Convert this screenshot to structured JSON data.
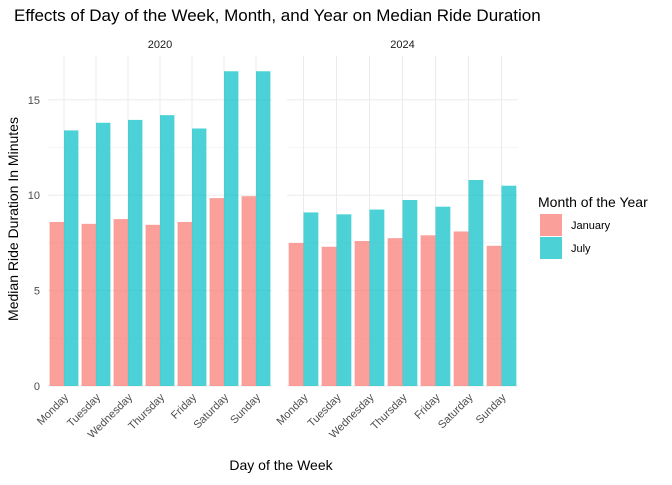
{
  "chart_data": {
    "type": "bar",
    "title": "Effects of Day of the Week, Month, and Year on Median Ride Duration",
    "xlabel": "Day of the Week",
    "ylabel": "Median Ride Duration In Minutes",
    "ylim": [
      0,
      17.3
    ],
    "yticks": [
      0,
      5,
      10,
      15
    ],
    "grid": true,
    "legend": {
      "title": "Month of the Year",
      "position": "right",
      "entries": [
        "January",
        "July"
      ]
    },
    "colors": {
      "January": "#F8766D",
      "July": "#00BFC4"
    },
    "categories": [
      "Monday",
      "Tuesday",
      "Wednesday",
      "Thursday",
      "Friday",
      "Saturday",
      "Sunday"
    ],
    "facets": [
      {
        "label": "2020",
        "series": [
          {
            "name": "January",
            "values": [
              8.6,
              8.5,
              8.75,
              8.45,
              8.6,
              9.85,
              9.95
            ]
          },
          {
            "name": "July",
            "values": [
              13.4,
              13.8,
              13.95,
              14.2,
              13.5,
              16.5,
              16.5
            ]
          }
        ]
      },
      {
        "label": "2024",
        "series": [
          {
            "name": "January",
            "values": [
              7.5,
              7.3,
              7.6,
              7.75,
              7.9,
              8.1,
              7.35
            ]
          },
          {
            "name": "July",
            "values": [
              9.1,
              9.0,
              9.25,
              9.75,
              9.4,
              10.8,
              10.5
            ]
          }
        ]
      }
    ]
  }
}
